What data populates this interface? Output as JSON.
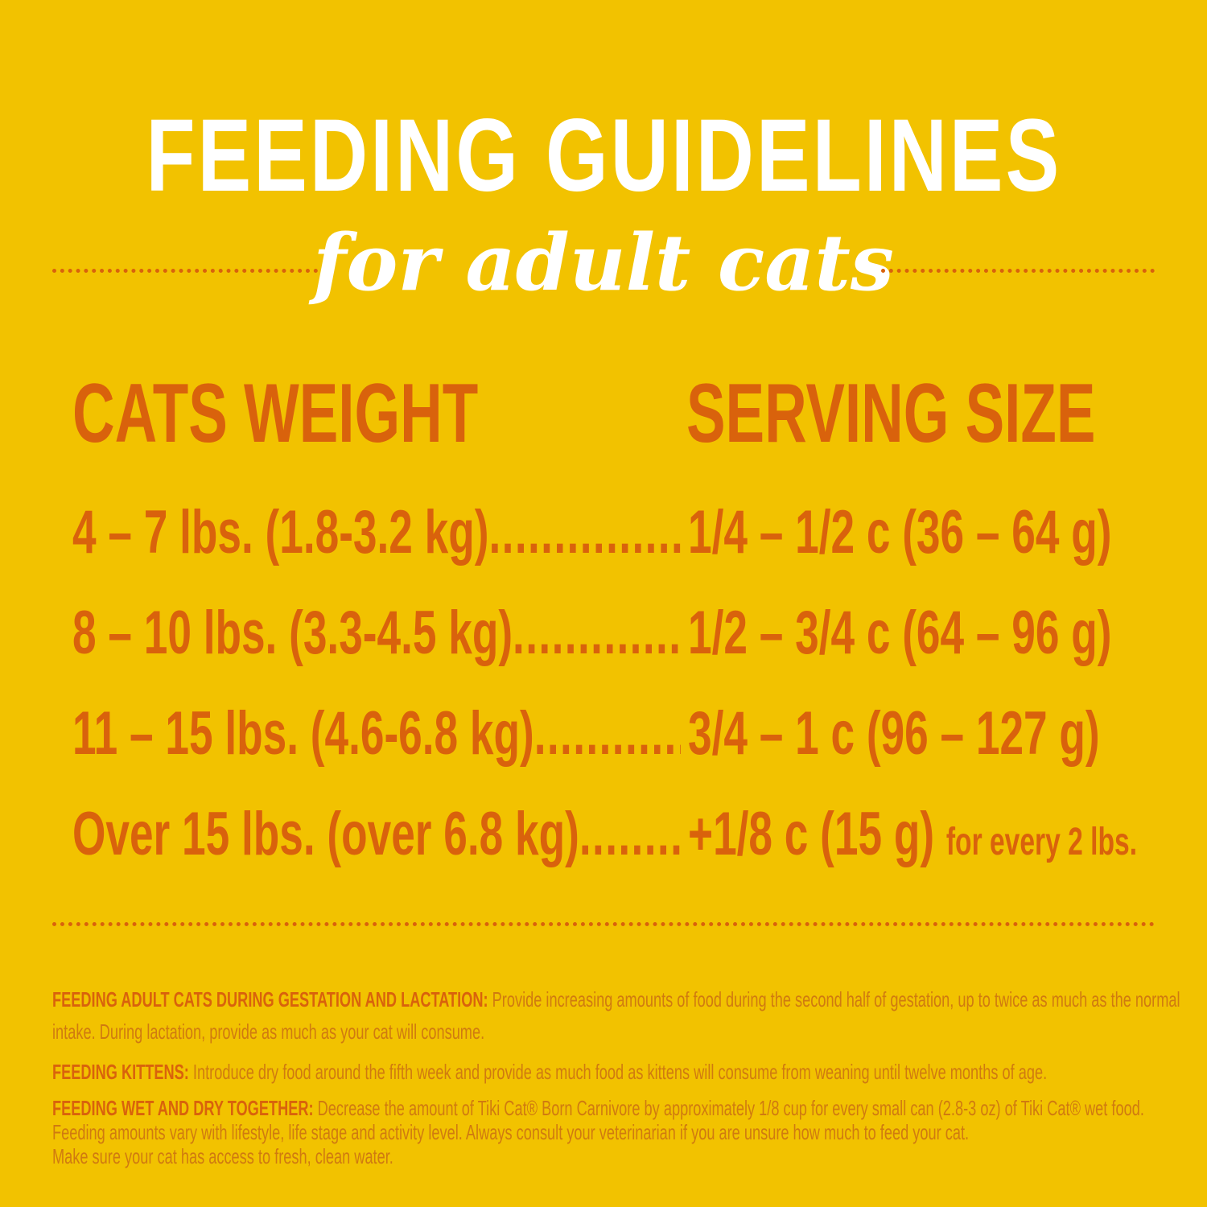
{
  "title": "FEEDING GUIDELINES",
  "subtitle": "for adult cats",
  "table": {
    "headers": [
      "CATS WEIGHT",
      "SERVING SIZE"
    ],
    "rows": [
      {
        "weight": "4 – 7 lbs. (1.8-3.2 kg)",
        "serving": "1/4 – 1/2 c (36 – 64 g)",
        "extra": ""
      },
      {
        "weight": "8 – 10 lbs. (3.3-4.5 kg)",
        "serving": "1/2 – 3/4 c (64 – 96 g)",
        "extra": ""
      },
      {
        "weight": "11 – 15 lbs. (4.6-6.8 kg)",
        "serving": "3/4 – 1 c (96 – 127 g)",
        "extra": ""
      },
      {
        "weight": "Over 15 lbs. (over 6.8 kg)",
        "serving": "+1/8 c (15 g)",
        "extra": "for every 2 lbs."
      }
    ]
  },
  "notes": [
    {
      "label": "FEEDING ADULT CATS DURING GESTATION AND LACTATION:",
      "lines": [
        "Provide increasing amounts of food during the second half of gestation, up to twice as much as the normal",
        "intake.  During lactation, provide as much as your cat will consume."
      ]
    },
    {
      "label": "FEEDING KITTENS:",
      "lines": [
        "Introduce dry food around the fifth week and provide as much food as kittens will consume from weaning until twelve months of age."
      ]
    },
    {
      "label": "FEEDING WET AND DRY TOGETHER:",
      "lines": [
        "Decrease the amount of Tiki Cat® Born Carnivore by approximately 1/8 cup for every small can (2.8-3 oz) of Tiki Cat® wet food.",
        "Feeding amounts vary with lifestyle, life stage and activity level.  Always consult your veterinarian if you are unsure how much to feed your cat.",
        "Make sure your cat has access to fresh, clean water."
      ]
    }
  ],
  "colors": {
    "background": "#F2C200",
    "accent": "#D9620C",
    "title": "#FFFFFF"
  }
}
